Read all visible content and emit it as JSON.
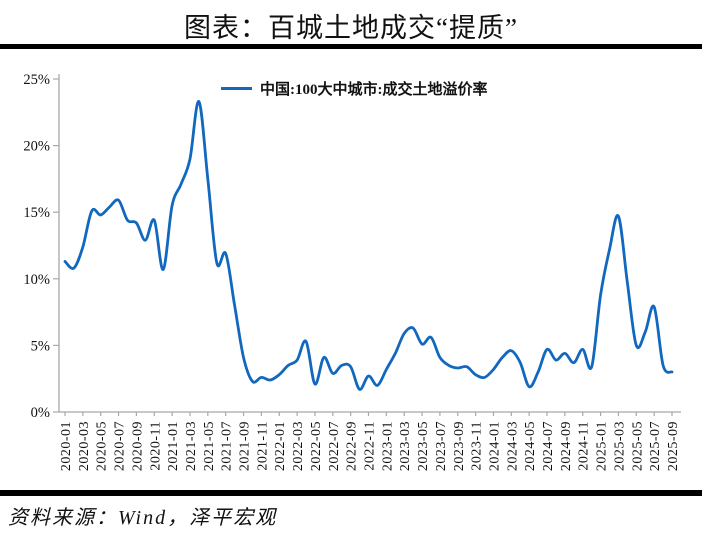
{
  "title": "图表：百城土地成交“提质”",
  "source": "资料来源：Wind，泽平宏观",
  "legend": {
    "label": "中国:100大中城市:成交土地溢价率"
  },
  "colors": {
    "line": "#1268be",
    "axis": "#a8a8a8",
    "label_text": "#111111",
    "rule": "#000000",
    "background": "#ffffff"
  },
  "chart_data": {
    "type": "line",
    "title": "图表：百城土地成交“提质”",
    "legend_entries": [
      "中国:100大中城市:成交土地溢价率"
    ],
    "legend_position": "top-center",
    "grid": false,
    "unit": "%",
    "ylim": [
      0,
      25
    ],
    "ytick_step": 5,
    "ytick_labels": [
      "0%",
      "5%",
      "10%",
      "15%",
      "20%",
      "25%"
    ],
    "x_tick_label_step": 2,
    "x": [
      "2020-01",
      "2020-02",
      "2020-03",
      "2020-04",
      "2020-05",
      "2020-06",
      "2020-07",
      "2020-08",
      "2020-09",
      "2020-10",
      "2020-11",
      "2020-12",
      "2021-01",
      "2021-02",
      "2021-03",
      "2021-04",
      "2021-05",
      "2021-06",
      "2021-07",
      "2021-08",
      "2021-09",
      "2021-10",
      "2021-11",
      "2021-12",
      "2022-01",
      "2022-02",
      "2022-03",
      "2022-04",
      "2022-05",
      "2022-06",
      "2022-07",
      "2022-08",
      "2022-09",
      "2022-10",
      "2022-11",
      "2022-12",
      "2023-01",
      "2023-02",
      "2023-03",
      "2023-04",
      "2023-05",
      "2023-06",
      "2023-07",
      "2023-08",
      "2023-09",
      "2023-10",
      "2023-11",
      "2023-12",
      "2024-01",
      "2024-02",
      "2024-03",
      "2024-04",
      "2024-05",
      "2024-06",
      "2024-07",
      "2024-08",
      "2024-09",
      "2024-10",
      "2024-11",
      "2024-12",
      "2025-01",
      "2025-02",
      "2025-03",
      "2025-04",
      "2025-05",
      "2025-06",
      "2025-07",
      "2025-08",
      "2025-09"
    ],
    "values": [
      11.3,
      10.8,
      12.4,
      15.1,
      14.8,
      15.4,
      15.9,
      14.4,
      14.2,
      12.9,
      14.4,
      10.7,
      15.5,
      17.1,
      19.0,
      23.3,
      17.5,
      11.2,
      11.9,
      8.0,
      4.1,
      2.3,
      2.6,
      2.4,
      2.8,
      3.5,
      3.9,
      5.3,
      2.1,
      4.1,
      2.9,
      3.5,
      3.4,
      1.7,
      2.7,
      2.0,
      3.2,
      4.4,
      5.9,
      6.3,
      5.1,
      5.6,
      4.1,
      3.5,
      3.3,
      3.4,
      2.8,
      2.6,
      3.2,
      4.1,
      4.6,
      3.7,
      1.9,
      3.0,
      4.7,
      3.9,
      4.4,
      3.7,
      4.7,
      3.4,
      8.8,
      12.2,
      14.7,
      9.7,
      5.0,
      6.0,
      7.9,
      3.5,
      3.0
    ]
  }
}
